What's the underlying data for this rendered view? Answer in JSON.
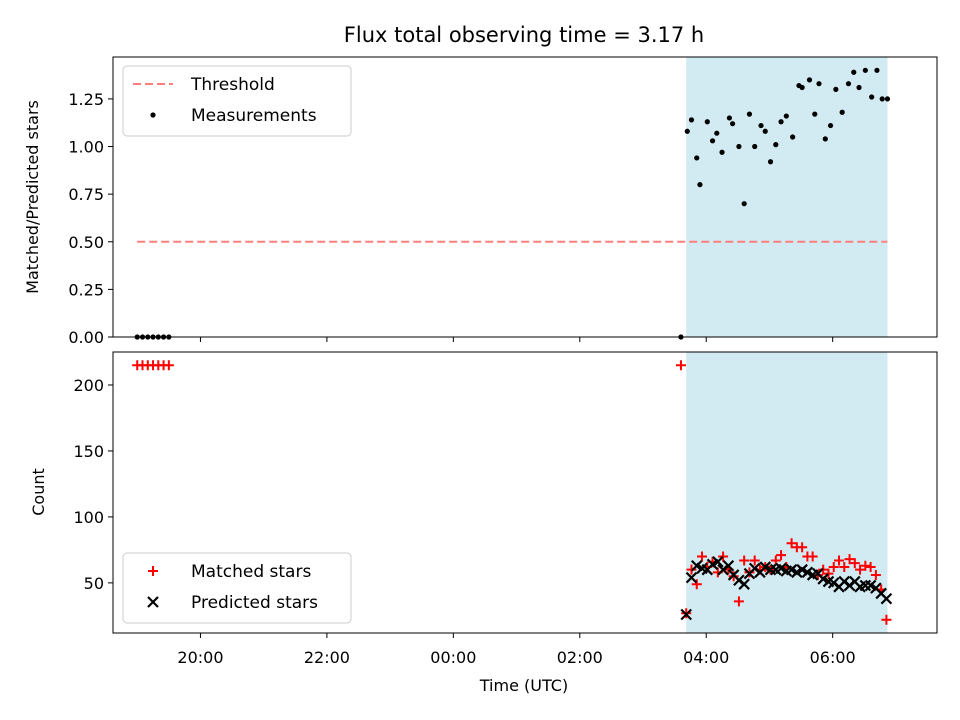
{
  "chart_data": [
    {
      "type": "scatter",
      "title": "Flux total observing time = 3.17 h",
      "ylabel": "Matched/Predicted stars",
      "xlabel": "",
      "xlim": [
        "2024-01-01T18:37",
        "2024-01-02T07:39"
      ],
      "ylim": [
        0,
        1.47
      ],
      "yticks": [
        0.0,
        0.25,
        0.5,
        0.75,
        1.0,
        1.25
      ],
      "ytick_labels": [
        "0.00",
        "0.25",
        "0.50",
        "0.75",
        "1.00",
        "1.25"
      ],
      "legend_position": "upper-left",
      "legend": [
        "Threshold",
        "Measurements"
      ],
      "shaded_region": {
        "x_start": "03:41",
        "x_end": "06:52",
        "color": "#add8e6"
      },
      "threshold": {
        "name": "Threshold",
        "y": 0.5,
        "x_start": "19:00",
        "x_end": "06:52",
        "color": "#ff7f7f",
        "style": "dashed"
      },
      "series": [
        {
          "name": "Measurements",
          "color": "#000000",
          "x": [
            "19:00",
            "19:05",
            "19:10",
            "19:15",
            "19:20",
            "19:25",
            "19:30",
            "03:36",
            "03:42",
            "03:46",
            "03:51",
            "03:54",
            "04:01",
            "04:06",
            "04:10",
            "04:15",
            "04:22",
            "04:25",
            "04:31",
            "04:36",
            "04:41",
            "04:46",
            "04:52",
            "04:56",
            "05:01",
            "05:06",
            "05:11",
            "05:16",
            "05:22",
            "05:28",
            "05:31",
            "05:38",
            "05:43",
            "05:47",
            "05:53",
            "05:58",
            "06:03",
            "06:09",
            "06:15",
            "06:20",
            "06:25",
            "06:31",
            "06:37",
            "06:42",
            "06:47",
            "06:52"
          ],
          "y": [
            0,
            0,
            0,
            0,
            0,
            0,
            0,
            0,
            1.08,
            1.14,
            0.94,
            0.8,
            1.13,
            1.03,
            1.07,
            0.97,
            1.15,
            1.12,
            1.0,
            0.7,
            1.17,
            1.0,
            1.11,
            1.08,
            0.92,
            1.01,
            1.13,
            1.16,
            1.05,
            1.32,
            1.31,
            1.35,
            1.17,
            1.33,
            1.04,
            1.11,
            1.3,
            1.18,
            1.33,
            1.39,
            1.31,
            1.4,
            1.26,
            1.4,
            1.25,
            1.25
          ]
        }
      ]
    },
    {
      "type": "scatter",
      "title": "",
      "ylabel": "Count",
      "xlabel": "Time (UTC)",
      "xlim": [
        "2024-01-01T18:37",
        "2024-01-02T07:39"
      ],
      "ylim": [
        12,
        225
      ],
      "yticks": [
        50,
        100,
        150,
        200
      ],
      "ytick_labels": [
        "50",
        "100",
        "150",
        "200"
      ],
      "xticks": [
        "20:00",
        "22:00",
        "00:00",
        "02:00",
        "04:00",
        "06:00"
      ],
      "legend_position": "lower-left",
      "legend": [
        "Matched stars",
        "Predicted stars"
      ],
      "shaded_region": {
        "x_start": "03:41",
        "x_end": "06:52",
        "color": "#add8e6"
      },
      "series": [
        {
          "name": "Matched stars",
          "marker": "plus",
          "color": "#ff0000",
          "x": [
            "19:00",
            "19:05",
            "19:10",
            "19:15",
            "19:20",
            "19:25",
            "19:30",
            "03:36",
            "03:41",
            "03:46",
            "03:51",
            "03:56",
            "04:01",
            "04:06",
            "04:11",
            "04:16",
            "04:21",
            "04:26",
            "04:31",
            "04:36",
            "04:41",
            "04:46",
            "04:51",
            "04:56",
            "05:01",
            "05:06",
            "05:11",
            "05:16",
            "05:21",
            "05:26",
            "05:31",
            "05:36",
            "05:41",
            "05:46",
            "05:51",
            "05:56",
            "06:01",
            "06:06",
            "06:11",
            "06:16",
            "06:21",
            "06:26",
            "06:31",
            "06:36",
            "06:41",
            "06:46",
            "06:51"
          ],
          "y": [
            215,
            215,
            215,
            215,
            215,
            215,
            215,
            215,
            27,
            60,
            49,
            70,
            62,
            66,
            58,
            70,
            60,
            55,
            36,
            67,
            58,
            67,
            60,
            62,
            60,
            67,
            71,
            62,
            80,
            77,
            77,
            70,
            70,
            56,
            60,
            57,
            62,
            67,
            62,
            68,
            65,
            60,
            63,
            62,
            56,
            45,
            22
          ]
        },
        {
          "name": "Predicted stars",
          "marker": "x",
          "color": "#000000",
          "x": [
            "03:41",
            "03:46",
            "03:51",
            "03:56",
            "04:01",
            "04:06",
            "04:11",
            "04:16",
            "04:21",
            "04:26",
            "04:31",
            "04:36",
            "04:41",
            "04:46",
            "04:51",
            "04:56",
            "05:01",
            "05:06",
            "05:11",
            "05:16",
            "05:21",
            "05:26",
            "05:31",
            "05:36",
            "05:41",
            "05:46",
            "05:51",
            "05:56",
            "06:01",
            "06:06",
            "06:11",
            "06:16",
            "06:21",
            "06:26",
            "06:31",
            "06:36",
            "06:41",
            "06:46",
            "06:51"
          ],
          "y": [
            26,
            54,
            63,
            61,
            60,
            64,
            66,
            60,
            63,
            56,
            52,
            49,
            57,
            61,
            58,
            62,
            60,
            60,
            61,
            59,
            60,
            58,
            60,
            58,
            56,
            57,
            53,
            51,
            50,
            47,
            51,
            48,
            51,
            47,
            48,
            48,
            46,
            42,
            38
          ]
        }
      ]
    }
  ]
}
